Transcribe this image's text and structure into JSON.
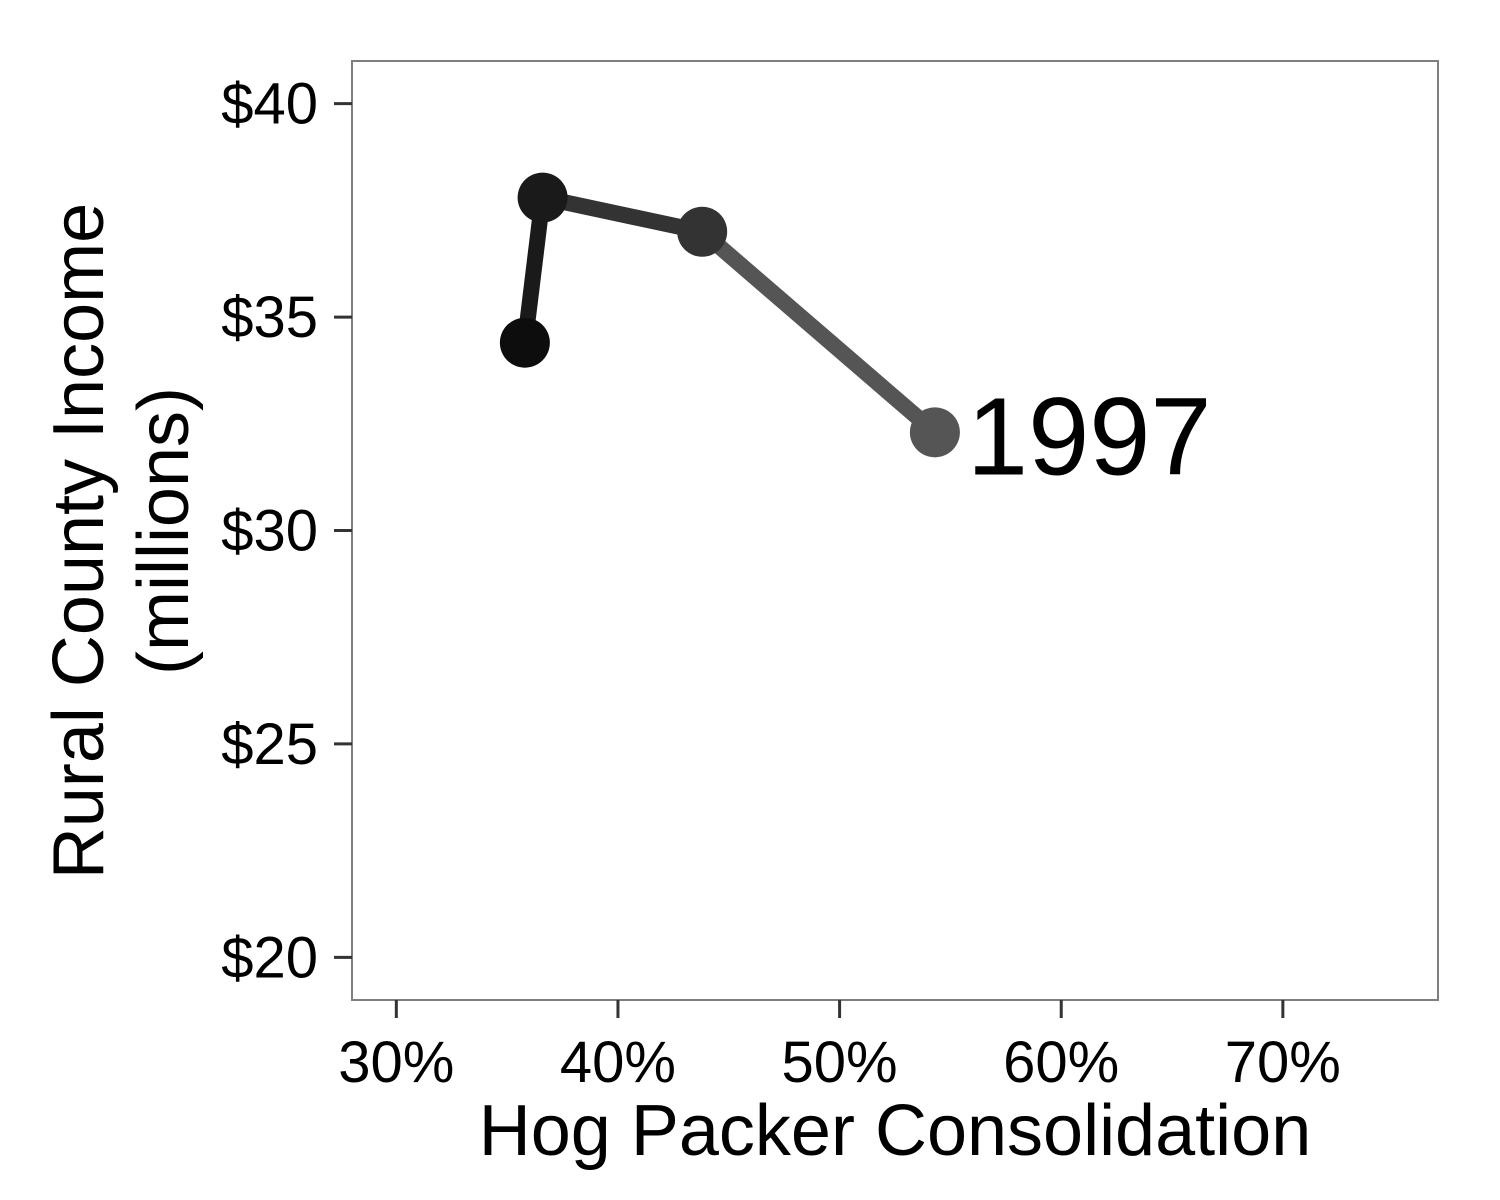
{
  "chart_data": {
    "type": "line",
    "xlabel": "Hog Packer Consolidation",
    "ylabel_lines": [
      "Rural County Income",
      "(millions)"
    ],
    "xlim": [
      28,
      77
    ],
    "ylim": [
      19,
      41
    ],
    "x_ticks": [
      30,
      40,
      50,
      60,
      70
    ],
    "x_tick_labels": [
      "30%",
      "40%",
      "50%",
      "60%",
      "70%"
    ],
    "y_ticks": [
      20,
      25,
      30,
      35,
      40
    ],
    "y_tick_labels": [
      "$20",
      "$25",
      "$30",
      "$35",
      "$40"
    ],
    "grid": false,
    "series": [
      {
        "x": [
          35.8,
          36.6,
          43.8,
          54.3
        ],
        "y": [
          34.4,
          37.8,
          37.0,
          32.3
        ],
        "colors": [
          "#0d0d0d",
          "#1a1a1a",
          "#333333",
          "#555555"
        ]
      }
    ],
    "annotations": [
      {
        "text": "1997",
        "x": 54.3,
        "y": 32.3
      }
    ]
  }
}
